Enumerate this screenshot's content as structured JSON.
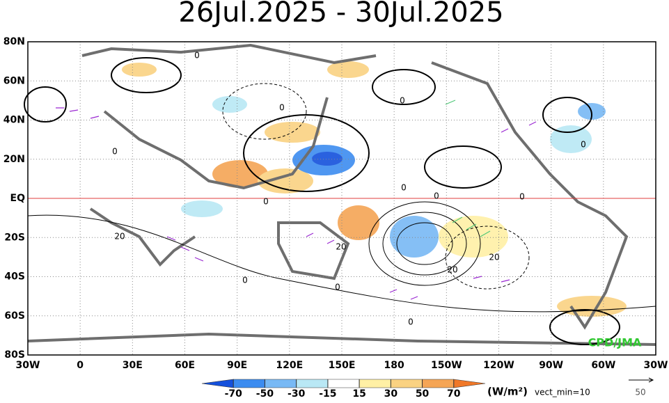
{
  "title": "26Jul.2025 - 30Jul.2025",
  "map": {
    "lat_labels": [
      "80N",
      "60N",
      "40N",
      "20N",
      "EQ",
      "20S",
      "40S",
      "60S",
      "80S"
    ],
    "lon_labels": [
      "30W",
      "0",
      "30E",
      "60E",
      "90E",
      "120E",
      "150E",
      "180",
      "150W",
      "120W",
      "90W",
      "60W",
      "30W"
    ],
    "contour_labels": [
      0,
      0,
      0,
      0,
      0,
      0,
      0,
      0,
      0,
      20,
      20,
      20,
      20,
      0,
      0,
      0
    ]
  },
  "colorbar": {
    "ticks": [
      -70,
      -50,
      -30,
      -15,
      15,
      30,
      50,
      70
    ],
    "colors": [
      "#1450dc",
      "#3c8cf0",
      "#78b9f5",
      "#b9e8f5",
      "#ffffff",
      "#fff0a5",
      "#fad282",
      "#f5a555",
      "#f07828"
    ],
    "units": "(W/m²)"
  },
  "vector_note": "vect_min=10",
  "reference_vector": "50",
  "credit": "CPD/JMA"
}
